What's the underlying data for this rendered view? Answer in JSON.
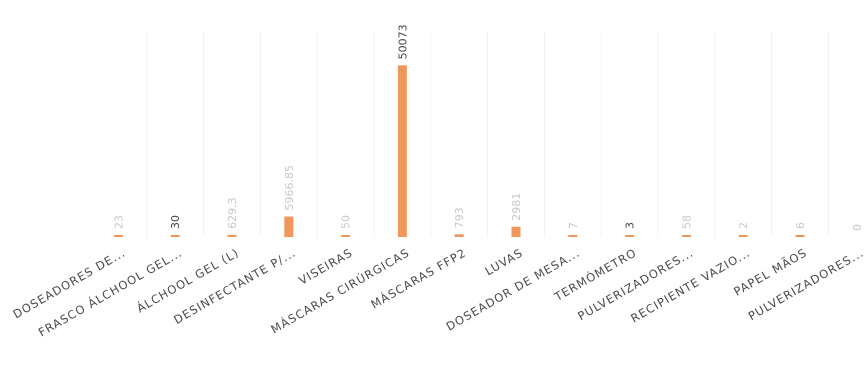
{
  "chart_data": {
    "type": "bar",
    "title": "",
    "xlabel": "",
    "ylabel": "",
    "ylim": [
      0,
      56000
    ],
    "grid": true,
    "bar_color": "#f0975c",
    "categories": [
      "DOSEADORES DE...",
      "FRASCO ÁLCHOOL GEL...",
      "ÁLCHOOL GEL (L)",
      "DESINFECTANTE P/...",
      "VISEIRAS",
      "MÁSCARAS CIRÚRGICAS",
      "MÁSCARAS FFP2",
      "LUVAS",
      "DOSEADOR DE MESA...",
      "TERMÓMETRO",
      "PULVERIZADORES...",
      "RECIPIENTE VAZIO...",
      "PAPEL MÃOS",
      "PULVERIZADORES..."
    ],
    "values": [
      23,
      30,
      629.3,
      5966.85,
      50,
      50073,
      793,
      2981,
      7,
      3,
      58,
      2,
      6,
      0
    ],
    "value_labels": [
      "23",
      "30",
      "629.3",
      "5966.85",
      "50",
      "50073",
      "793",
      "2981",
      "7",
      "3",
      "58",
      "2",
      "6",
      "0"
    ],
    "emphasized_labels": [
      1,
      5,
      9
    ]
  }
}
